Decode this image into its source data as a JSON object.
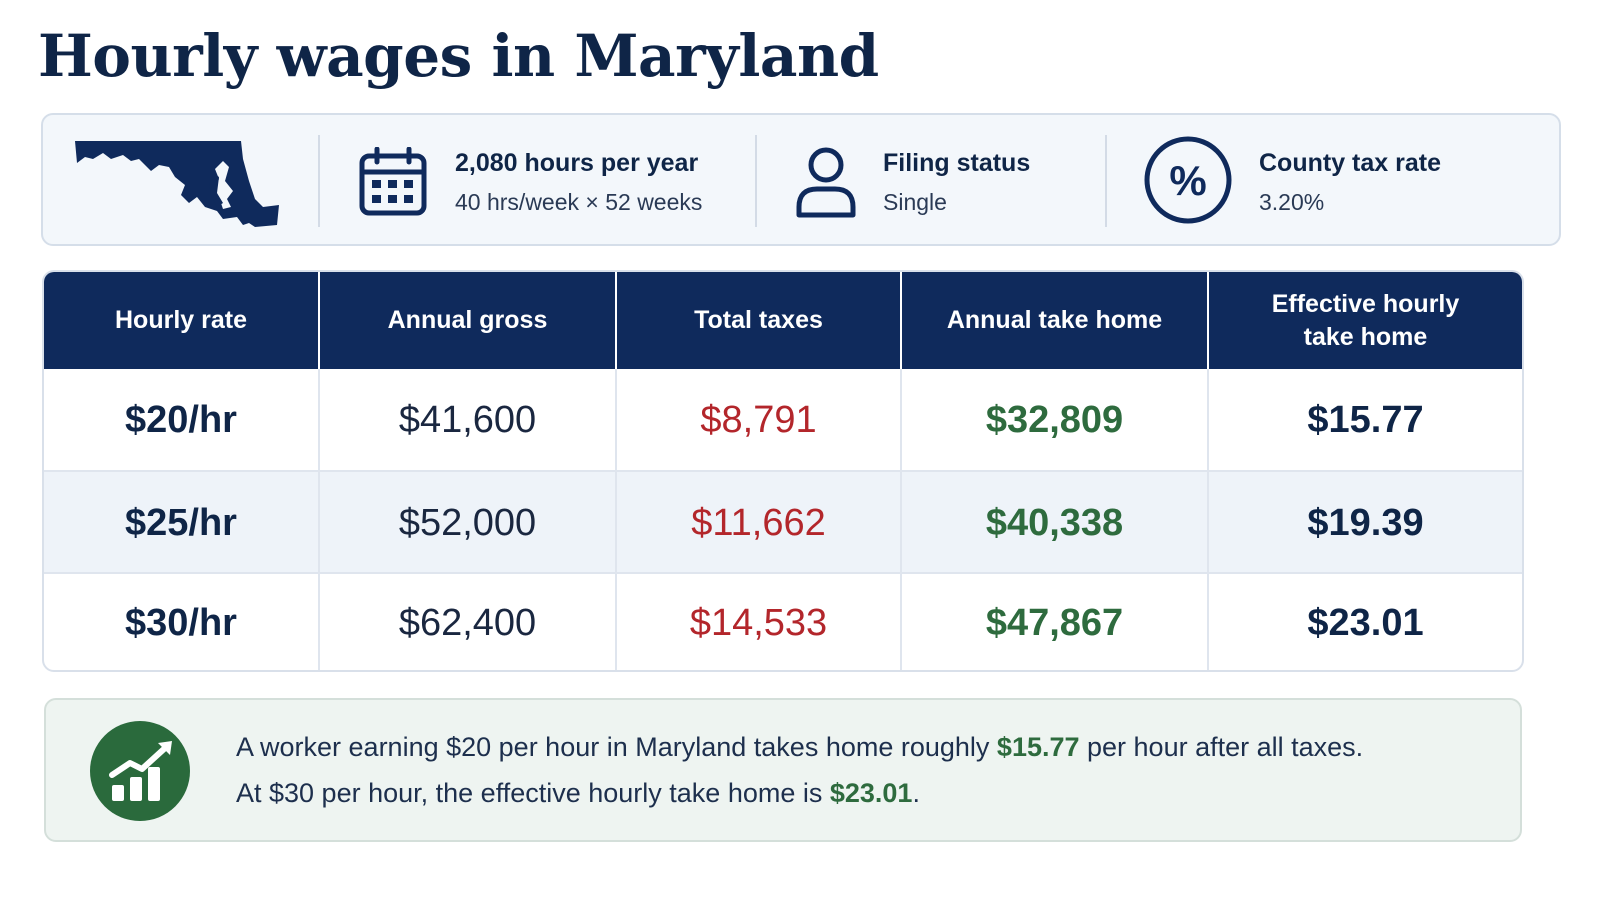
{
  "title": "Hourly wages in Maryland",
  "colors": {
    "navy": "#0f2a5c",
    "tax_red": "#b3262b",
    "takehome_green": "#2e6b3e",
    "callout_bg": "#eef4f1"
  },
  "info": {
    "map_icon": "maryland-map-icon",
    "hours": {
      "icon": "calendar-icon",
      "heading": "2,080 hours per year",
      "sub": "40 hrs/week × 52 weeks"
    },
    "filing": {
      "icon": "person-icon",
      "heading": "Filing status",
      "sub": "Single"
    },
    "county": {
      "icon": "percent-icon",
      "heading": "County tax rate",
      "sub": "3.20%"
    }
  },
  "table": {
    "headers": [
      "Hourly rate",
      "Annual gross",
      "Total taxes",
      "Annual take home",
      "Effective hourly take home"
    ],
    "rows": [
      {
        "rate": "$20/hr",
        "gross": "$41,600",
        "taxes": "$8,791",
        "takehome": "$32,809",
        "effective": "$15.77"
      },
      {
        "rate": "$25/hr",
        "gross": "$52,000",
        "taxes": "$11,662",
        "takehome": "$40,338",
        "effective": "$19.39"
      },
      {
        "rate": "$30/hr",
        "gross": "$62,400",
        "taxes": "$14,533",
        "takehome": "$47,867",
        "effective": "$23.01"
      }
    ]
  },
  "callout": {
    "icon": "growth-chart-icon",
    "line1_pre": "A worker earning $20 per hour in Maryland takes home roughly ",
    "line1_highlight": "$15.77",
    "line1_post": " per hour after all taxes.",
    "line2_pre": "At $30 per hour, the effective hourly take home is ",
    "line2_highlight": "$23.01",
    "line2_post": "."
  }
}
